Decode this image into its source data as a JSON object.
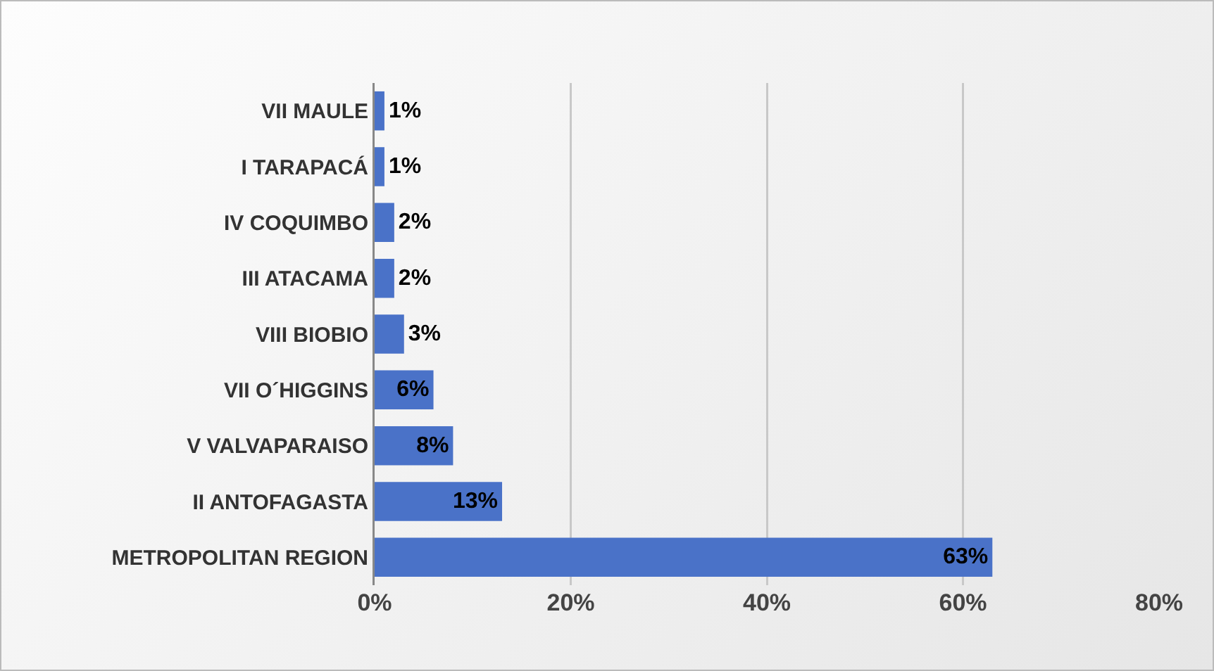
{
  "chart_data": {
    "type": "bar",
    "orientation": "horizontal",
    "categories": [
      "VII MAULE",
      "I TARAPACÁ",
      "IV COQUIMBO",
      "III ATACAMA",
      "VIII BIOBIO",
      "VII O´HIGGINS",
      "V VALVAPARAISO",
      "II ANTOFAGASTA",
      "METROPOLITAN REGION"
    ],
    "values": [
      1,
      1,
      2,
      2,
      3,
      6,
      8,
      13,
      63
    ],
    "value_labels": [
      "1%",
      "1%",
      "2%",
      "2%",
      "3%",
      "6%",
      "8%",
      "13%",
      "63%"
    ],
    "color": "#4a72c8",
    "xlim": [
      0,
      80
    ],
    "xticks": [
      {
        "value": 0,
        "label": "0%"
      },
      {
        "value": 20,
        "label": "20%"
      },
      {
        "value": 40,
        "label": "40%"
      },
      {
        "value": 60,
        "label": "60%"
      },
      {
        "value": 80,
        "label": "80%"
      }
    ],
    "grid": "x",
    "legend": false
  }
}
